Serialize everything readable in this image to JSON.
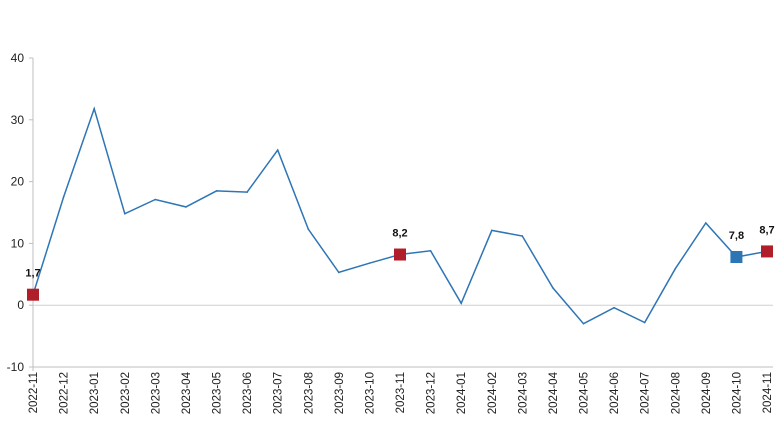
{
  "chart_data": {
    "type": "line",
    "title": "",
    "xlabel": "",
    "ylabel": "",
    "ylim": [
      -10,
      40
    ],
    "yticks": [
      -10,
      0,
      10,
      20,
      30,
      40
    ],
    "grid": false,
    "categories": [
      "2022-11",
      "2022-12",
      "2023-01",
      "2023-02",
      "2023-03",
      "2023-04",
      "2023-05",
      "2023-06",
      "2023-07",
      "2023-08",
      "2023-09",
      "2023-10",
      "2023-11",
      "2023-12",
      "2024-01",
      "2024-02",
      "2024-03",
      "2024-04",
      "2024-05",
      "2024-06",
      "2024-07",
      "2024-08",
      "2024-09",
      "2024-10",
      "2024-11"
    ],
    "series": [
      {
        "values": [
          1.7,
          17.5,
          31.8,
          14.8,
          17.1,
          15.9,
          18.5,
          18.3,
          25.1,
          12.3,
          5.3,
          6.8,
          8.2,
          8.8,
          0.3,
          12.1,
          11.2,
          2.8,
          -3.0,
          -0.4,
          -2.8,
          5.9,
          13.3,
          7.8,
          8.7
        ]
      }
    ],
    "highlighted_points": [
      {
        "index": 0,
        "label": "1,7",
        "color": "#b01e2a"
      },
      {
        "index": 12,
        "label": "8,2",
        "color": "#b01e2a"
      },
      {
        "index": 23,
        "label": "7,8",
        "color": "#2e75b6"
      },
      {
        "index": 24,
        "label": "8,7",
        "color": "#b01e2a"
      }
    ],
    "colors": {
      "line": "#2e75b6",
      "axis": "#bfbfbf",
      "zero_line": "#d0d0d0"
    }
  }
}
